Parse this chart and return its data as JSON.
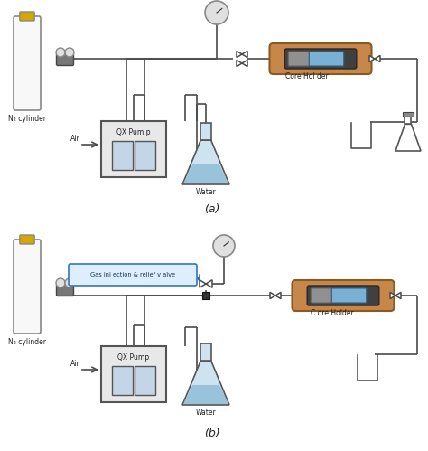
{
  "title_a": "(a)",
  "title_b": "(b)",
  "label_core_holder_a": "Core Hol der",
  "label_core_holder_b": "C ore Holder",
  "label_water_a": "Water",
  "label_water_b": "Water",
  "label_n2_a": "N₂ cylinder",
  "label_n2_b": "N₂ cylinder",
  "label_air_a": "Air",
  "label_air_b": "Air",
  "label_pump_a": "QX Pum p",
  "label_pump_b": "QX Pump",
  "label_gas_injection": "Gas inj ection & relief v alve",
  "bg_color": "#ffffff",
  "line_color": "#4a4a4a",
  "cylinder_fill": "#f8f8f8",
  "cylinder_stroke": "#888888",
  "pump_box_fill": "#e8e8e8",
  "pump_box_stroke": "#555555",
  "pump_inner_fill": "#c5d5e8",
  "core_outer_fill": "#c8874a",
  "core_outer_stroke": "#8a5a20",
  "core_dark_fill": "#404040",
  "core_blue_fill": "#7ab0d4",
  "core_gray_fill": "#909090",
  "flask_body_fill": "#cde4f0",
  "flask_water_fill": "#90bcd8",
  "flask_stroke": "#555555",
  "gauge_fill": "#e0e0e0",
  "gauge_stroke": "#888888",
  "beaker_fill": "#f0f0f0",
  "beaker_stroke": "#555555",
  "coll_flask_fill": "#ffffff",
  "coll_flask_stroke": "#555555",
  "yellow_fill": "#d4a800",
  "regulator_fill": "#888888",
  "gas_box_fill": "#ddeeff",
  "gas_box_stroke": "#3377bb",
  "gas_box_text": "#113366"
}
